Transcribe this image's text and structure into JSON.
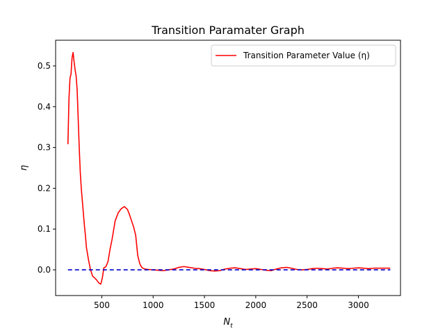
{
  "chart_data": {
    "type": "line",
    "title": "Transition Paramater Graph",
    "xlabel": "N",
    "xlabel_subscript": "t",
    "ylabel": "η",
    "xlim": [
      50,
      3410
    ],
    "ylim": [
      -0.063,
      0.563
    ],
    "xticks": [
      500,
      1000,
      1500,
      2000,
      2500,
      3000
    ],
    "yticks": [
      0.0,
      0.1,
      0.2,
      0.3,
      0.4,
      0.5
    ],
    "xtick_labels": [
      "500",
      "1000",
      "1500",
      "2000",
      "2500",
      "3000"
    ],
    "ytick_labels": [
      "0.0",
      "0.1",
      "0.2",
      "0.3",
      "0.4",
      "0.5"
    ],
    "grid": false,
    "legend": {
      "location": "upper right",
      "entries": [
        "Transition Parameter Value (η)"
      ]
    },
    "series": [
      {
        "name": "Transition Parameter Value (η)",
        "color": "#ff0000",
        "style": "solid",
        "x": [
          170,
          180,
          190,
          200,
          210,
          220,
          230,
          240,
          250,
          260,
          270,
          280,
          290,
          300,
          310,
          320,
          330,
          340,
          350,
          370,
          390,
          410,
          430,
          450,
          470,
          490,
          505,
          520,
          540,
          560,
          580,
          600,
          630,
          660,
          690,
          720,
          750,
          770,
          790,
          810,
          830,
          850,
          870,
          880,
          890,
          900,
          920,
          950,
          1000,
          1050,
          1100,
          1150,
          1200,
          1250,
          1300,
          1350,
          1400,
          1450,
          1500,
          1550,
          1600,
          1650,
          1700,
          1750,
          1800,
          1850,
          1900,
          1950,
          2000,
          2050,
          2100,
          2150,
          2200,
          2250,
          2300,
          2350,
          2400,
          2450,
          2500,
          2550,
          2600,
          2650,
          2700,
          2750,
          2800,
          2850,
          2900,
          2950,
          3000,
          3050,
          3100,
          3150,
          3200,
          3250,
          3310
        ],
        "values": [
          0.308,
          0.42,
          0.47,
          0.48,
          0.52,
          0.533,
          0.51,
          0.49,
          0.475,
          0.44,
          0.37,
          0.3,
          0.24,
          0.2,
          0.17,
          0.14,
          0.11,
          0.085,
          0.055,
          0.025,
          0.0,
          -0.015,
          -0.02,
          -0.025,
          -0.032,
          -0.035,
          -0.02,
          0.005,
          0.008,
          0.02,
          0.05,
          0.075,
          0.12,
          0.14,
          0.15,
          0.155,
          0.148,
          0.135,
          0.12,
          0.105,
          0.085,
          0.035,
          0.015,
          0.01,
          0.006,
          0.004,
          0.002,
          0.001,
          0.0,
          -0.001,
          -0.002,
          0.0,
          0.002,
          0.006,
          0.008,
          0.006,
          0.004,
          0.003,
          0.001,
          -0.002,
          -0.003,
          -0.002,
          0.002,
          0.004,
          0.005,
          0.003,
          0.001,
          0.002,
          0.003,
          0.001,
          -0.001,
          -0.002,
          0.002,
          0.005,
          0.006,
          0.004,
          0.001,
          0.0,
          0.001,
          0.003,
          0.004,
          0.003,
          0.002,
          0.004,
          0.005,
          0.004,
          0.003,
          0.004,
          0.005,
          0.004,
          0.003,
          0.004,
          0.004,
          0.004,
          0.004
        ]
      },
      {
        "color": "#0000cc",
        "style": "dashed",
        "x": [
          170,
          3310
        ],
        "values": [
          0.0,
          0.0
        ]
      }
    ]
  }
}
